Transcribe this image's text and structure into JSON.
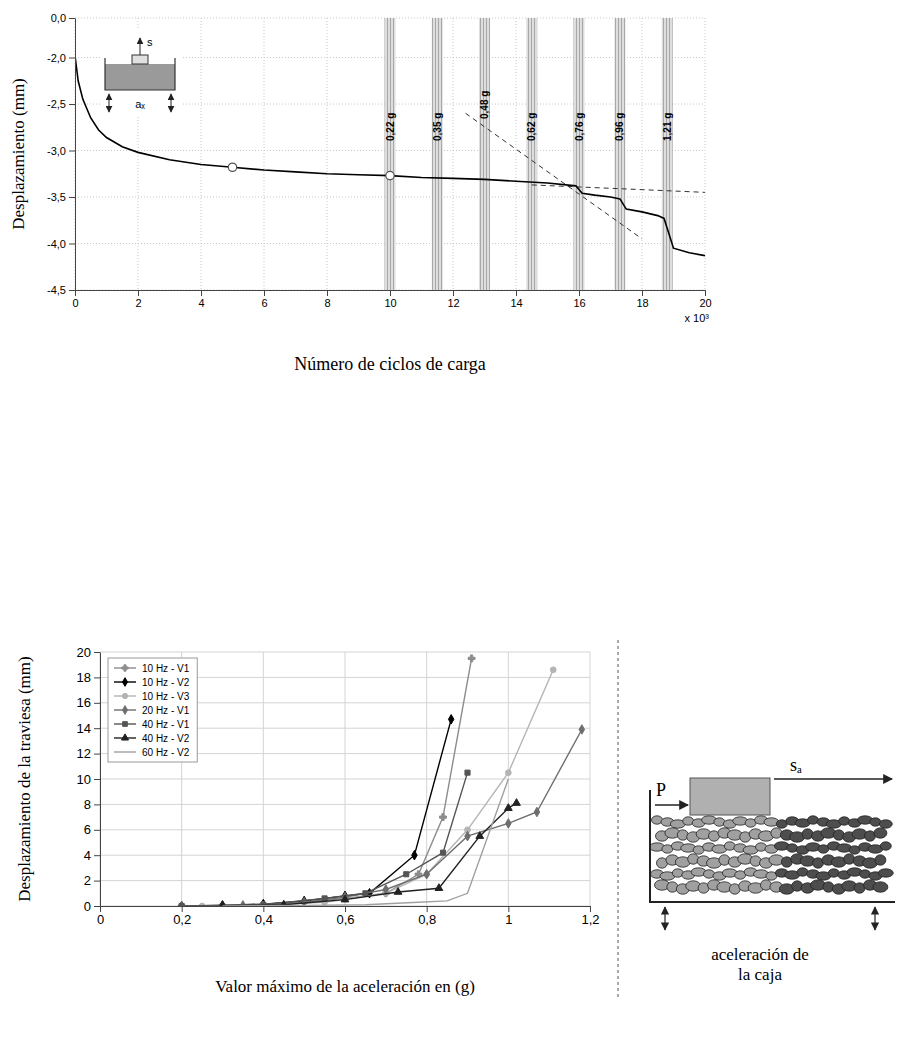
{
  "chart_data": [
    {
      "type": "line",
      "x_label": "Número de ciclos de carga",
      "y_label": "Desplazamiento (mm)",
      "color": "#000000",
      "x": [
        0,
        0.1,
        0.25,
        0.5,
        0.75,
        1,
        1.5,
        2,
        3,
        4,
        5,
        6,
        7,
        8,
        9,
        10,
        11,
        12,
        13,
        14,
        15,
        15.9,
        16.1,
        16.5,
        17,
        17.3,
        17.5,
        18,
        18.5,
        18.7,
        19,
        19.5,
        20
      ],
      "values": [
        -1.9,
        -2.25,
        -2.45,
        -2.65,
        -2.78,
        -2.86,
        -2.96,
        -3.02,
        -3.1,
        -3.15,
        -3.18,
        -3.21,
        -3.23,
        -3.25,
        -3.26,
        -3.27,
        -3.29,
        -3.3,
        -3.31,
        -3.33,
        -3.35,
        -3.38,
        -3.46,
        -3.48,
        -3.5,
        -3.52,
        -3.63,
        -3.66,
        -3.7,
        -3.73,
        -4.05,
        -4.1,
        -4.13
      ],
      "xlim": [
        0,
        20
      ],
      "xticks": [
        0,
        2,
        4,
        6,
        8,
        10,
        12,
        14,
        16,
        18,
        20
      ],
      "ylim": [
        -4.5,
        0
      ],
      "yticks": [
        {
          "value": 0,
          "label": "0,0"
        },
        {
          "value": -2,
          "label": "-2,0"
        },
        {
          "value": -2.5,
          "label": "-2,5"
        },
        {
          "value": -3,
          "label": "-3,0"
        },
        {
          "value": -3.5,
          "label": "-3,5"
        },
        {
          "value": -4,
          "label": "-4,0"
        },
        {
          "value": -4.5,
          "label": "-4,5"
        }
      ],
      "grid": true,
      "bands": [
        {
          "x": 10,
          "label": "0,22 g"
        },
        {
          "x": 11.5,
          "label": "0,35 g"
        },
        {
          "x": 13,
          "label": "0,48 g"
        },
        {
          "x": 14.5,
          "label": "0,62 g"
        },
        {
          "x": 16,
          "label": "0,76 g"
        },
        {
          "x": 17.3,
          "label": "0,96 g"
        },
        {
          "x": 18.8,
          "label": "1,21 g"
        }
      ],
      "trend_lines": [
        {
          "x": [
            12.4,
            18
          ],
          "values": [
            -2.6,
            -3.95
          ],
          "line_style": "dashed"
        },
        {
          "x": [
            14.5,
            20
          ],
          "values": [
            -3.37,
            -3.45
          ],
          "line_style": "dashed"
        }
      ],
      "highlight_points": {
        "x": [
          5,
          10
        ],
        "values": [
          -3.18,
          -3.27
        ],
        "marker": "circle"
      },
      "annotations": [
        "x 10³",
        "s",
        "aₓ"
      ]
    },
    {
      "type": "line",
      "x_label": "Valor máximo de la aceleración en (g)",
      "y_label": "Desplazamiento de la traviesa (mm)",
      "series": [
        {
          "name": "10 Hz - V1",
          "color": "#8c8c8c",
          "marker": "plus",
          "x": [
            0.2,
            0.3,
            0.4,
            0.5,
            0.6,
            0.7,
            0.78,
            0.84,
            0.91
          ],
          "values": [
            0,
            0.05,
            0.1,
            0.3,
            0.6,
            1.0,
            2.5,
            7.0,
            19.5
          ]
        },
        {
          "name": "10 Hz - V2",
          "color": "#000000",
          "marker": "diamond",
          "x": [
            0.2,
            0.3,
            0.4,
            0.5,
            0.6,
            0.66,
            0.77,
            0.86
          ],
          "values": [
            0,
            0.05,
            0.15,
            0.4,
            0.8,
            1.0,
            4.0,
            14.7
          ]
        },
        {
          "name": "10 Hz - V3",
          "color": "#b4b4b4",
          "marker": "circle",
          "x": [
            0.25,
            0.4,
            0.55,
            0.7,
            0.8,
            0.9,
            1.0,
            1.11
          ],
          "values": [
            0,
            0.1,
            0.3,
            1.0,
            2.5,
            6.0,
            10.5,
            18.6
          ]
        },
        {
          "name": "20 Hz - V1",
          "color": "#6e6e6e",
          "marker": "diamond",
          "x": [
            0.2,
            0.35,
            0.5,
            0.6,
            0.7,
            0.8,
            0.9,
            1.0,
            1.07,
            1.18
          ],
          "values": [
            0,
            0.05,
            0.3,
            0.7,
            1.3,
            2.5,
            5.5,
            6.5,
            7.4,
            13.9
          ]
        },
        {
          "name": "40 Hz - V1",
          "color": "#555555",
          "marker": "square",
          "x": [
            0.2,
            0.4,
            0.55,
            0.65,
            0.75,
            0.84,
            0.9
          ],
          "values": [
            0,
            0.1,
            0.6,
            1.0,
            2.5,
            4.2,
            10.5
          ]
        },
        {
          "name": "40 Hz - V2",
          "color": "#222222",
          "marker": "triangle",
          "x": [
            0.3,
            0.45,
            0.6,
            0.73,
            0.83,
            0.93,
            1.0,
            1.02
          ],
          "values": [
            0,
            0.1,
            0.5,
            1.1,
            1.4,
            5.5,
            7.7,
            8.1
          ]
        },
        {
          "name": "60 Hz - V2",
          "color": "#a0a0a0",
          "marker": "none",
          "x": [
            0.3,
            0.5,
            0.65,
            0.78,
            0.85,
            0.9,
            1.0
          ],
          "values": [
            0,
            0.05,
            0.1,
            0.3,
            0.4,
            1.0,
            10.0
          ]
        }
      ],
      "xlim": [
        0,
        1.2
      ],
      "xticks": [
        0,
        {
          "value": 0.2,
          "label": "0,2"
        },
        {
          "value": 0.4,
          "label": "0,4"
        },
        {
          "value": 0.6,
          "label": "0,6"
        },
        {
          "value": 0.8,
          "label": "0,8"
        },
        1,
        {
          "value": 1.2,
          "label": "1,2"
        }
      ],
      "ylim": [
        0,
        20
      ],
      "yticks": [
        0,
        2,
        4,
        6,
        8,
        10,
        12,
        14,
        16,
        18,
        20
      ],
      "grid": true,
      "legend": "top-left",
      "annotations": [
        "P",
        "sₐ",
        "aceleración de la caja"
      ]
    }
  ]
}
